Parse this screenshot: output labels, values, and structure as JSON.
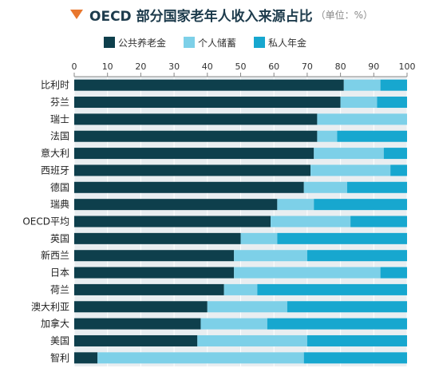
{
  "chart_data": {
    "type": "bar",
    "orientation": "horizontal",
    "stacked": true,
    "title": "OECD 部分国家老年人收入来源占比",
    "subtitle": "（单位：%）",
    "xlim": [
      0,
      100
    ],
    "xticks": [
      "0",
      "10",
      "20",
      "30",
      "40",
      "50",
      "60",
      "70",
      "80",
      "90",
      "100"
    ],
    "grid": true,
    "legend_position": "top",
    "categories": [
      "比利时",
      "芬兰",
      "瑞士",
      "法国",
      "意大利",
      "西班牙",
      "德国",
      "瑞典",
      "OECD平均",
      "英国",
      "新西兰",
      "日本",
      "荷兰",
      "澳大利亚",
      "加拿大",
      "美国",
      "智利"
    ],
    "series": [
      {
        "name": "公共养老金",
        "color": "#0e3f4c",
        "values": [
          81,
          80,
          73,
          73,
          72,
          71,
          69,
          61,
          59,
          50,
          48,
          48,
          45,
          40,
          38,
          37,
          7
        ]
      },
      {
        "name": "个人储蓄",
        "color": "#7dd0e8",
        "values": [
          11,
          11,
          27,
          6,
          21,
          24,
          13,
          11,
          24,
          11,
          22,
          44,
          10,
          24,
          20,
          33,
          62
        ]
      },
      {
        "name": "私人年金",
        "color": "#17a7cf",
        "values": [
          8,
          9,
          0,
          21,
          7,
          5,
          18,
          28,
          17,
          39,
          30,
          8,
          45,
          36,
          42,
          30,
          31
        ]
      }
    ]
  }
}
